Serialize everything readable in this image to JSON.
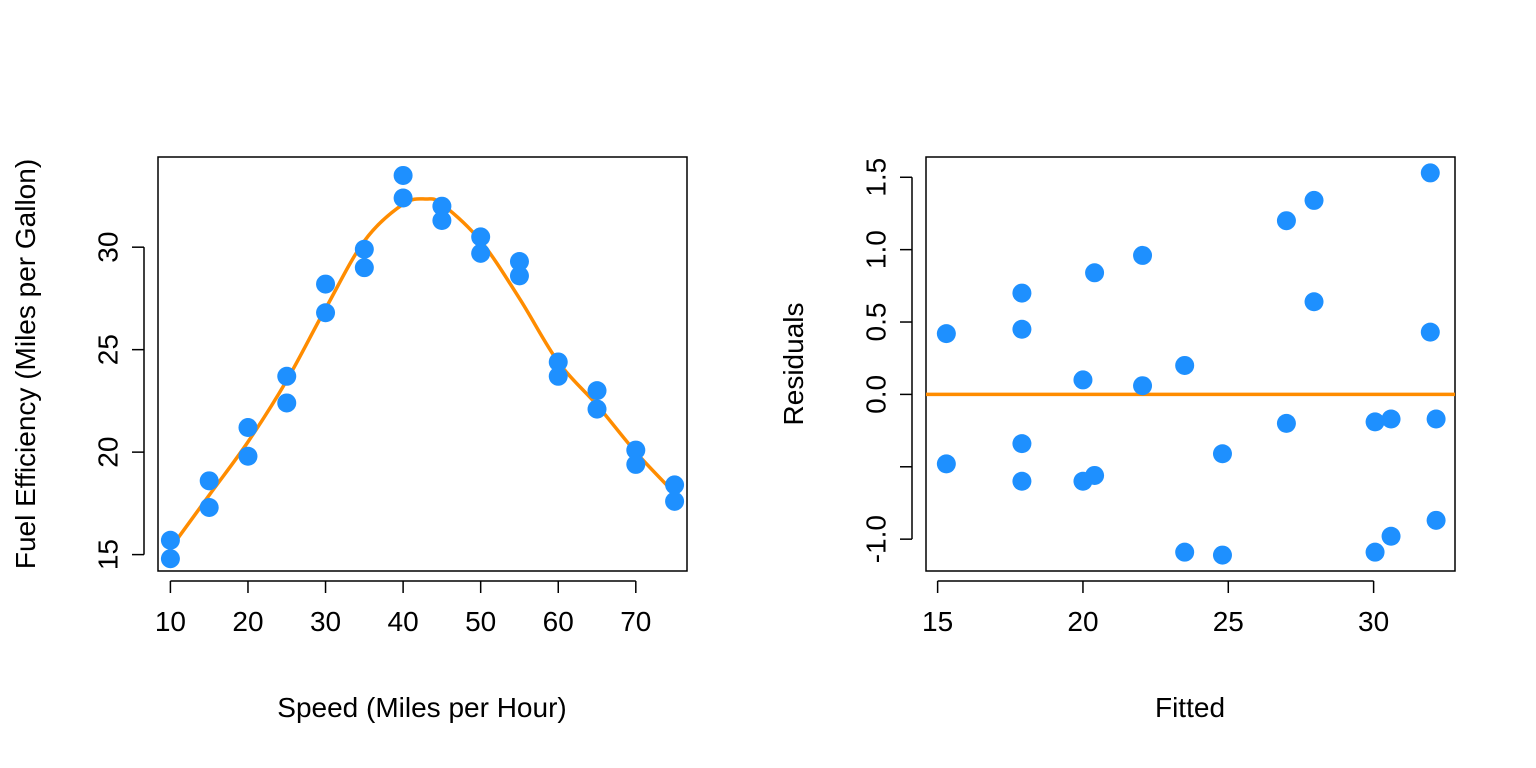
{
  "colors": {
    "points": "#1E90FF",
    "line": "#FF8C00",
    "axis": "#000000",
    "background": "#ffffff"
  },
  "chart_data": [
    {
      "type": "scatter",
      "title": "",
      "xlabel": "Speed (Miles per Hour)",
      "ylabel": "Fuel Efficiency (Miles per Gallon)",
      "xlim": [
        8.4,
        76.6
      ],
      "ylim": [
        14.2,
        34.4
      ],
      "xticks": [
        10,
        20,
        30,
        40,
        50,
        60,
        70
      ],
      "yticks": [
        15,
        20,
        25,
        30
      ],
      "grid": false,
      "legend": "none",
      "series": [
        {
          "kind": "points",
          "color": "#1E90FF",
          "x": [
            10,
            10,
            15,
            15,
            20,
            20,
            25,
            25,
            30,
            30,
            35,
            35,
            40,
            40,
            45,
            45,
            50,
            50,
            55,
            55,
            60,
            60,
            65,
            65,
            70,
            70,
            75,
            75
          ],
          "y": [
            15.7,
            14.8,
            18.6,
            17.3,
            21.2,
            19.8,
            23.7,
            22.4,
            28.2,
            26.8,
            29.9,
            29.0,
            33.5,
            32.4,
            32.0,
            31.3,
            30.5,
            29.7,
            29.3,
            28.6,
            24.4,
            23.7,
            23.0,
            22.1,
            20.1,
            19.4,
            18.4,
            17.6
          ]
        },
        {
          "kind": "line",
          "color": "#FF8C00",
          "x": [
            10,
            15,
            20,
            25,
            30,
            35,
            40,
            43,
            45,
            50,
            55,
            60,
            65,
            70,
            75
          ],
          "y": [
            15.3,
            17.9,
            20.5,
            23.5,
            27.0,
            30.3,
            32.1,
            32.35,
            32.1,
            30.3,
            27.5,
            24.4,
            22.3,
            20.0,
            18.0
          ]
        }
      ]
    },
    {
      "type": "scatter",
      "title": "",
      "xlabel": "Fitted",
      "ylabel": "Residuals",
      "xlim": [
        14.6,
        32.8
      ],
      "ylim": [
        -1.22,
        1.64
      ],
      "xticks": [
        15,
        20,
        25,
        30
      ],
      "yticks": [
        -1.0,
        -0.5,
        0.0,
        0.5,
        1.0,
        1.5
      ],
      "ytick_labels": [
        "-1.0",
        "",
        "0.0",
        "0.5",
        "1.0",
        "1.5"
      ],
      "grid": false,
      "legend": "none",
      "hline": 0,
      "series": [
        {
          "kind": "points",
          "color": "#1E90FF",
          "x": [
            15.3,
            15.3,
            17.9,
            17.9,
            17.9,
            17.9,
            20.0,
            20.0,
            20.4,
            20.4,
            22.05,
            22.05,
            23.5,
            23.5,
            24.8,
            24.8,
            27.0,
            27.0,
            27.95,
            27.95,
            30.05,
            30.05,
            30.6,
            30.6,
            31.95,
            31.95,
            32.15,
            32.15
          ],
          "y": [
            0.42,
            -0.48,
            0.7,
            0.45,
            -0.34,
            -0.6,
            0.1,
            -0.6,
            0.84,
            -0.56,
            0.96,
            0.06,
            0.2,
            -1.09,
            -0.41,
            -1.11,
            1.2,
            -0.2,
            1.34,
            0.64,
            -0.19,
            -1.09,
            -0.17,
            -0.98,
            1.53,
            0.43,
            -0.17,
            -0.87
          ]
        }
      ]
    }
  ]
}
